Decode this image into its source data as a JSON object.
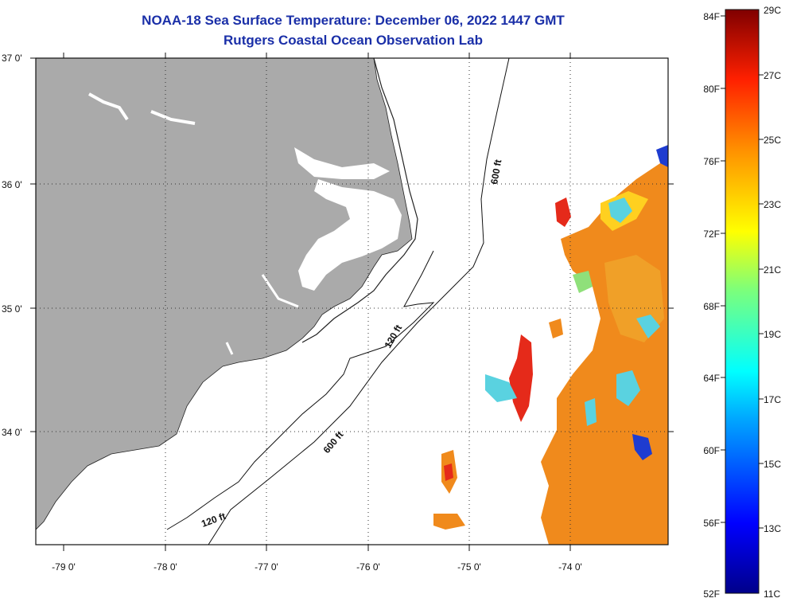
{
  "title": {
    "line1": "NOAA-18 Sea Surface Temperature:  December 06, 2022 1447 GMT",
    "line2": "Rutgers Coastal Ocean Observation Lab"
  },
  "axes": {
    "lon_labels": [
      "-79 0'",
      "-78 0'",
      "-77 0'",
      "-76 0'",
      "-75 0'",
      "-74 0'"
    ],
    "lat_labels": [
      "37 0'",
      "36 0'",
      "35 0'",
      "34 0'"
    ]
  },
  "contours": {
    "labels": [
      "600 ft",
      "120 ft",
      "600 ft",
      "120 ft"
    ]
  },
  "colorbar": {
    "fahrenheit": [
      "84F",
      "80F",
      "76F",
      "72F",
      "68F",
      "64F",
      "60F",
      "56F",
      "52F"
    ],
    "celsius": [
      "29C",
      "27C",
      "25C",
      "23C",
      "21C",
      "19C",
      "17C",
      "15C",
      "13C",
      "11C"
    ]
  },
  "colors": {
    "land": "#aaaaaa",
    "title": "#1a2fa8",
    "sst_warm": "#f08a1c",
    "sst_hot": "#e52a1a",
    "sst_cool": "#5ad2e0",
    "sst_cold": "#1e3cd0"
  }
}
